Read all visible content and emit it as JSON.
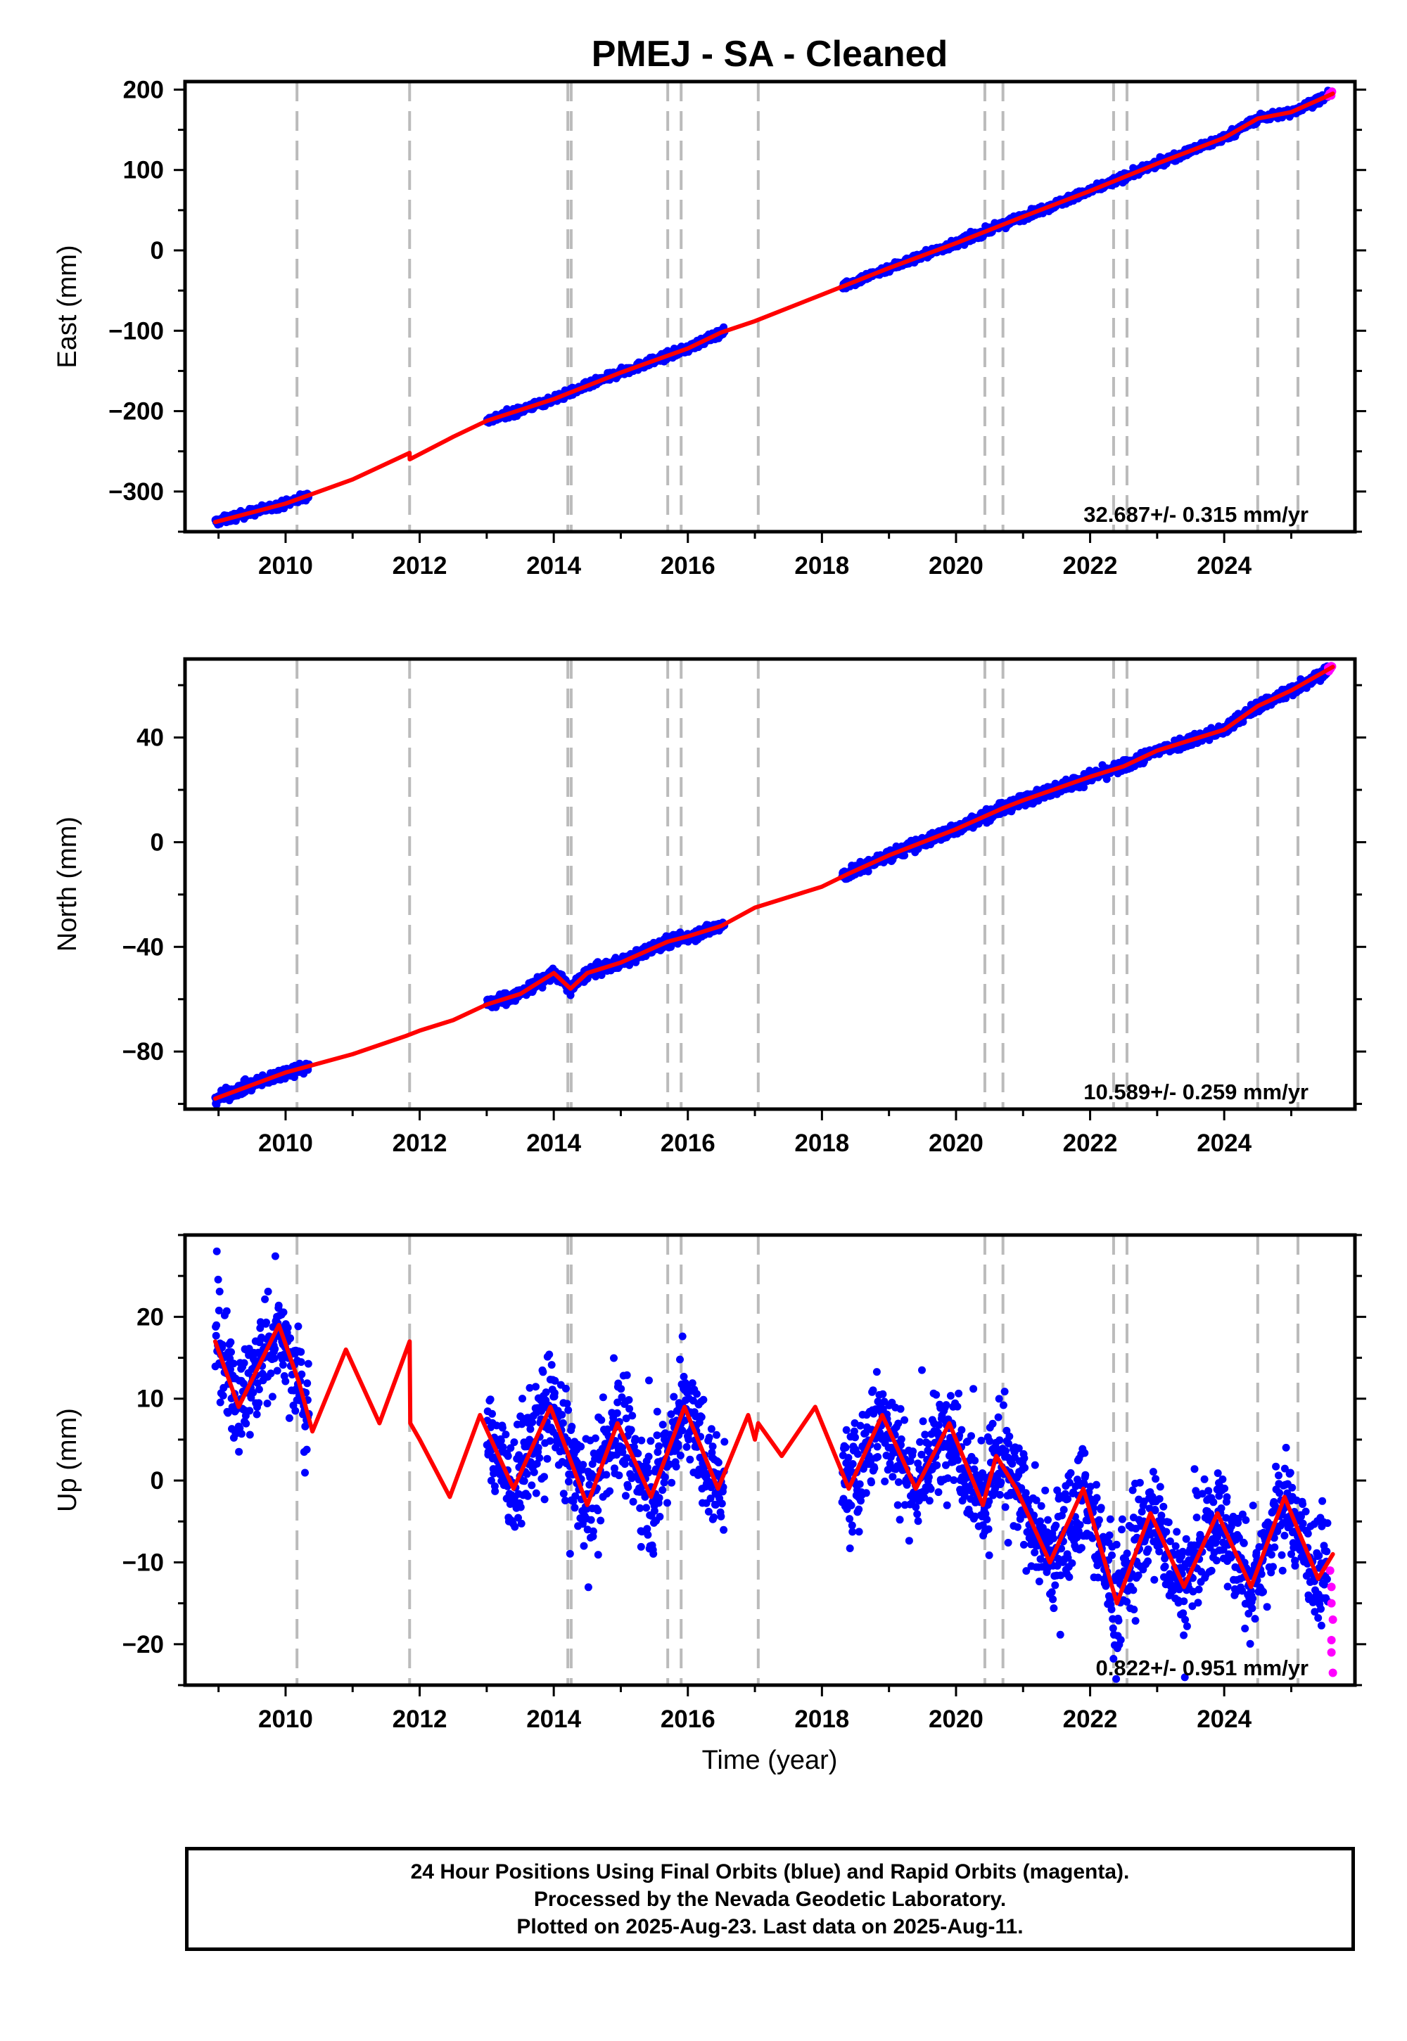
{
  "title": "PMEJ  - SA - Cleaned",
  "xlabel": "Time (year)",
  "colors": {
    "final_orbits": "#0000ff",
    "rapid_orbits": "#ff00ff",
    "model": "#ff0000",
    "steps": "#bbbbbb",
    "axes": "#000000"
  },
  "caption": {
    "line1": "24 Hour Positions Using Final Orbits (blue) and Rapid Orbits (magenta).",
    "line2": "Processed by the Nevada Geodetic Laboratory.",
    "line3": "Plotted on 2025-Aug-23. Last data on 2025-Aug-11."
  },
  "chart_data": [
    {
      "type": "scatter",
      "ylabel": "East (mm)",
      "rate_label": "32.687+/- 0.315 mm/yr",
      "xlim": [
        2008.5,
        2025.95
      ],
      "ylim": [
        -350,
        210
      ],
      "x_ticks": [
        2010,
        2012,
        2014,
        2016,
        2018,
        2020,
        2022,
        2024
      ],
      "y_ticks": [
        -300,
        -200,
        -100,
        0,
        100,
        200
      ],
      "step_lines": [
        2010.17,
        2011.85,
        2014.21,
        2014.26,
        2015.7,
        2015.9,
        2017.05,
        2020.43,
        2020.7,
        2022.35,
        2022.55,
        2024.5,
        2025.1
      ],
      "final_orbits": {
        "segments": [
          [
            2008.95,
            2010.35
          ],
          [
            2013.0,
            2016.55
          ],
          [
            2018.3,
            2025.55
          ]
        ]
      },
      "rapid_orbits": {
        "segments": [
          [
            2025.55,
            2025.62
          ]
        ]
      },
      "model_line": {
        "x": [
          2008.95,
          2010.0,
          2011.0,
          2011.849,
          2011.851,
          2012.5,
          2013.0,
          2014.0,
          2015.0,
          2016.0,
          2016.5,
          2017.0,
          2018.0,
          2019.0,
          2020.0,
          2021.0,
          2022.0,
          2023.0,
          2024.0,
          2024.5,
          2025.0,
          2025.62
        ],
        "y": [
          -338,
          -315,
          -285,
          -252,
          -260,
          -232,
          -212,
          -185,
          -152,
          -122,
          -102,
          -88,
          -55,
          -22,
          9,
          42,
          74,
          108,
          140,
          164,
          172,
          195
        ]
      }
    },
    {
      "type": "scatter",
      "ylabel": "North (mm)",
      "rate_label": "10.589+/- 0.259 mm/yr",
      "xlim": [
        2008.5,
        2025.95
      ],
      "ylim": [
        -102,
        70
      ],
      "x_ticks": [
        2010,
        2012,
        2014,
        2016,
        2018,
        2020,
        2022,
        2024
      ],
      "y_ticks": [
        -80,
        -40,
        0,
        40
      ],
      "step_lines": [
        2010.17,
        2011.85,
        2014.21,
        2014.26,
        2015.7,
        2015.9,
        2017.05,
        2020.43,
        2020.7,
        2022.35,
        2022.55,
        2024.5,
        2025.1
      ],
      "final_orbits": {
        "segments": [
          [
            2008.95,
            2010.35
          ],
          [
            2013.0,
            2016.55
          ],
          [
            2018.3,
            2025.55
          ]
        ]
      },
      "rapid_orbits": {
        "segments": [
          [
            2025.55,
            2025.62
          ]
        ]
      },
      "model_line": {
        "x": [
          2008.95,
          2010.0,
          2011.0,
          2011.8,
          2012.0,
          2012.5,
          2013.0,
          2013.5,
          2014.0,
          2014.25,
          2014.5,
          2015.0,
          2015.7,
          2016.0,
          2016.5,
          2017.0,
          2018.0,
          2018.4,
          2019.0,
          2020.0,
          2020.7,
          2021.0,
          2022.0,
          2022.5,
          2023.0,
          2024.0,
          2024.5,
          2025.0,
          2025.62
        ],
        "y": [
          -98,
          -88,
          -81,
          -74,
          -72,
          -68,
          -62,
          -58,
          -50,
          -56,
          -50,
          -46,
          -38,
          -36,
          -32,
          -25,
          -17,
          -12,
          -5,
          5,
          13,
          16,
          25,
          29,
          35,
          43,
          52,
          58,
          67
        ]
      }
    },
    {
      "type": "scatter",
      "ylabel": "Up (mm)",
      "rate_label": "0.822+/- 0.951 mm/yr",
      "xlim": [
        2008.5,
        2025.95
      ],
      "ylim": [
        -25,
        30
      ],
      "x_ticks": [
        2010,
        2012,
        2014,
        2016,
        2018,
        2020,
        2022,
        2024
      ],
      "y_ticks": [
        -20,
        -10,
        0,
        10,
        20
      ],
      "step_lines": [
        2010.17,
        2011.85,
        2014.21,
        2014.26,
        2015.7,
        2015.9,
        2017.05,
        2020.43,
        2020.7,
        2022.35,
        2022.55,
        2024.5,
        2025.1
      ],
      "final_orbits": {
        "segments": [
          [
            2008.95,
            2010.35
          ],
          [
            2013.0,
            2016.55
          ],
          [
            2018.3,
            2025.55
          ]
        ]
      },
      "rapid_orbits": {
        "points": [
          [
            2025.58,
            -11
          ],
          [
            2025.6,
            -13
          ],
          [
            2025.6,
            -15
          ],
          [
            2025.62,
            -17
          ],
          [
            2025.6,
            -19.5
          ],
          [
            2025.6,
            -21
          ],
          [
            2025.62,
            -23.5
          ]
        ]
      },
      "model_line": {
        "x": [
          2008.95,
          2009.3,
          2009.6,
          2009.9,
          2010.2,
          2010.4,
          2010.9,
          2011.4,
          2011.85,
          2011.86,
          2012.0,
          2012.45,
          2012.9,
          2013.4,
          2013.95,
          2014.5,
          2014.95,
          2015.45,
          2015.95,
          2016.45,
          2016.9,
          2017.0,
          2017.05,
          2017.4,
          2017.9,
          2018.4,
          2018.9,
          2019.4,
          2019.9,
          2020.4,
          2020.6,
          2020.9,
          2021.4,
          2021.9,
          2022.4,
          2022.9,
          2023.4,
          2023.9,
          2024.4,
          2024.9,
          2025.4,
          2025.62
        ],
        "y": [
          17,
          9,
          14,
          19,
          12,
          6,
          16,
          7,
          17,
          7,
          5,
          -2,
          8,
          -1,
          9,
          -3,
          7,
          -2,
          9,
          -1,
          8,
          5,
          7,
          3,
          9,
          -1,
          8,
          -1,
          7,
          -3,
          3,
          -1,
          -10,
          -1,
          -15,
          -4,
          -13,
          -4,
          -13,
          -2,
          -12,
          -9
        ]
      }
    }
  ]
}
